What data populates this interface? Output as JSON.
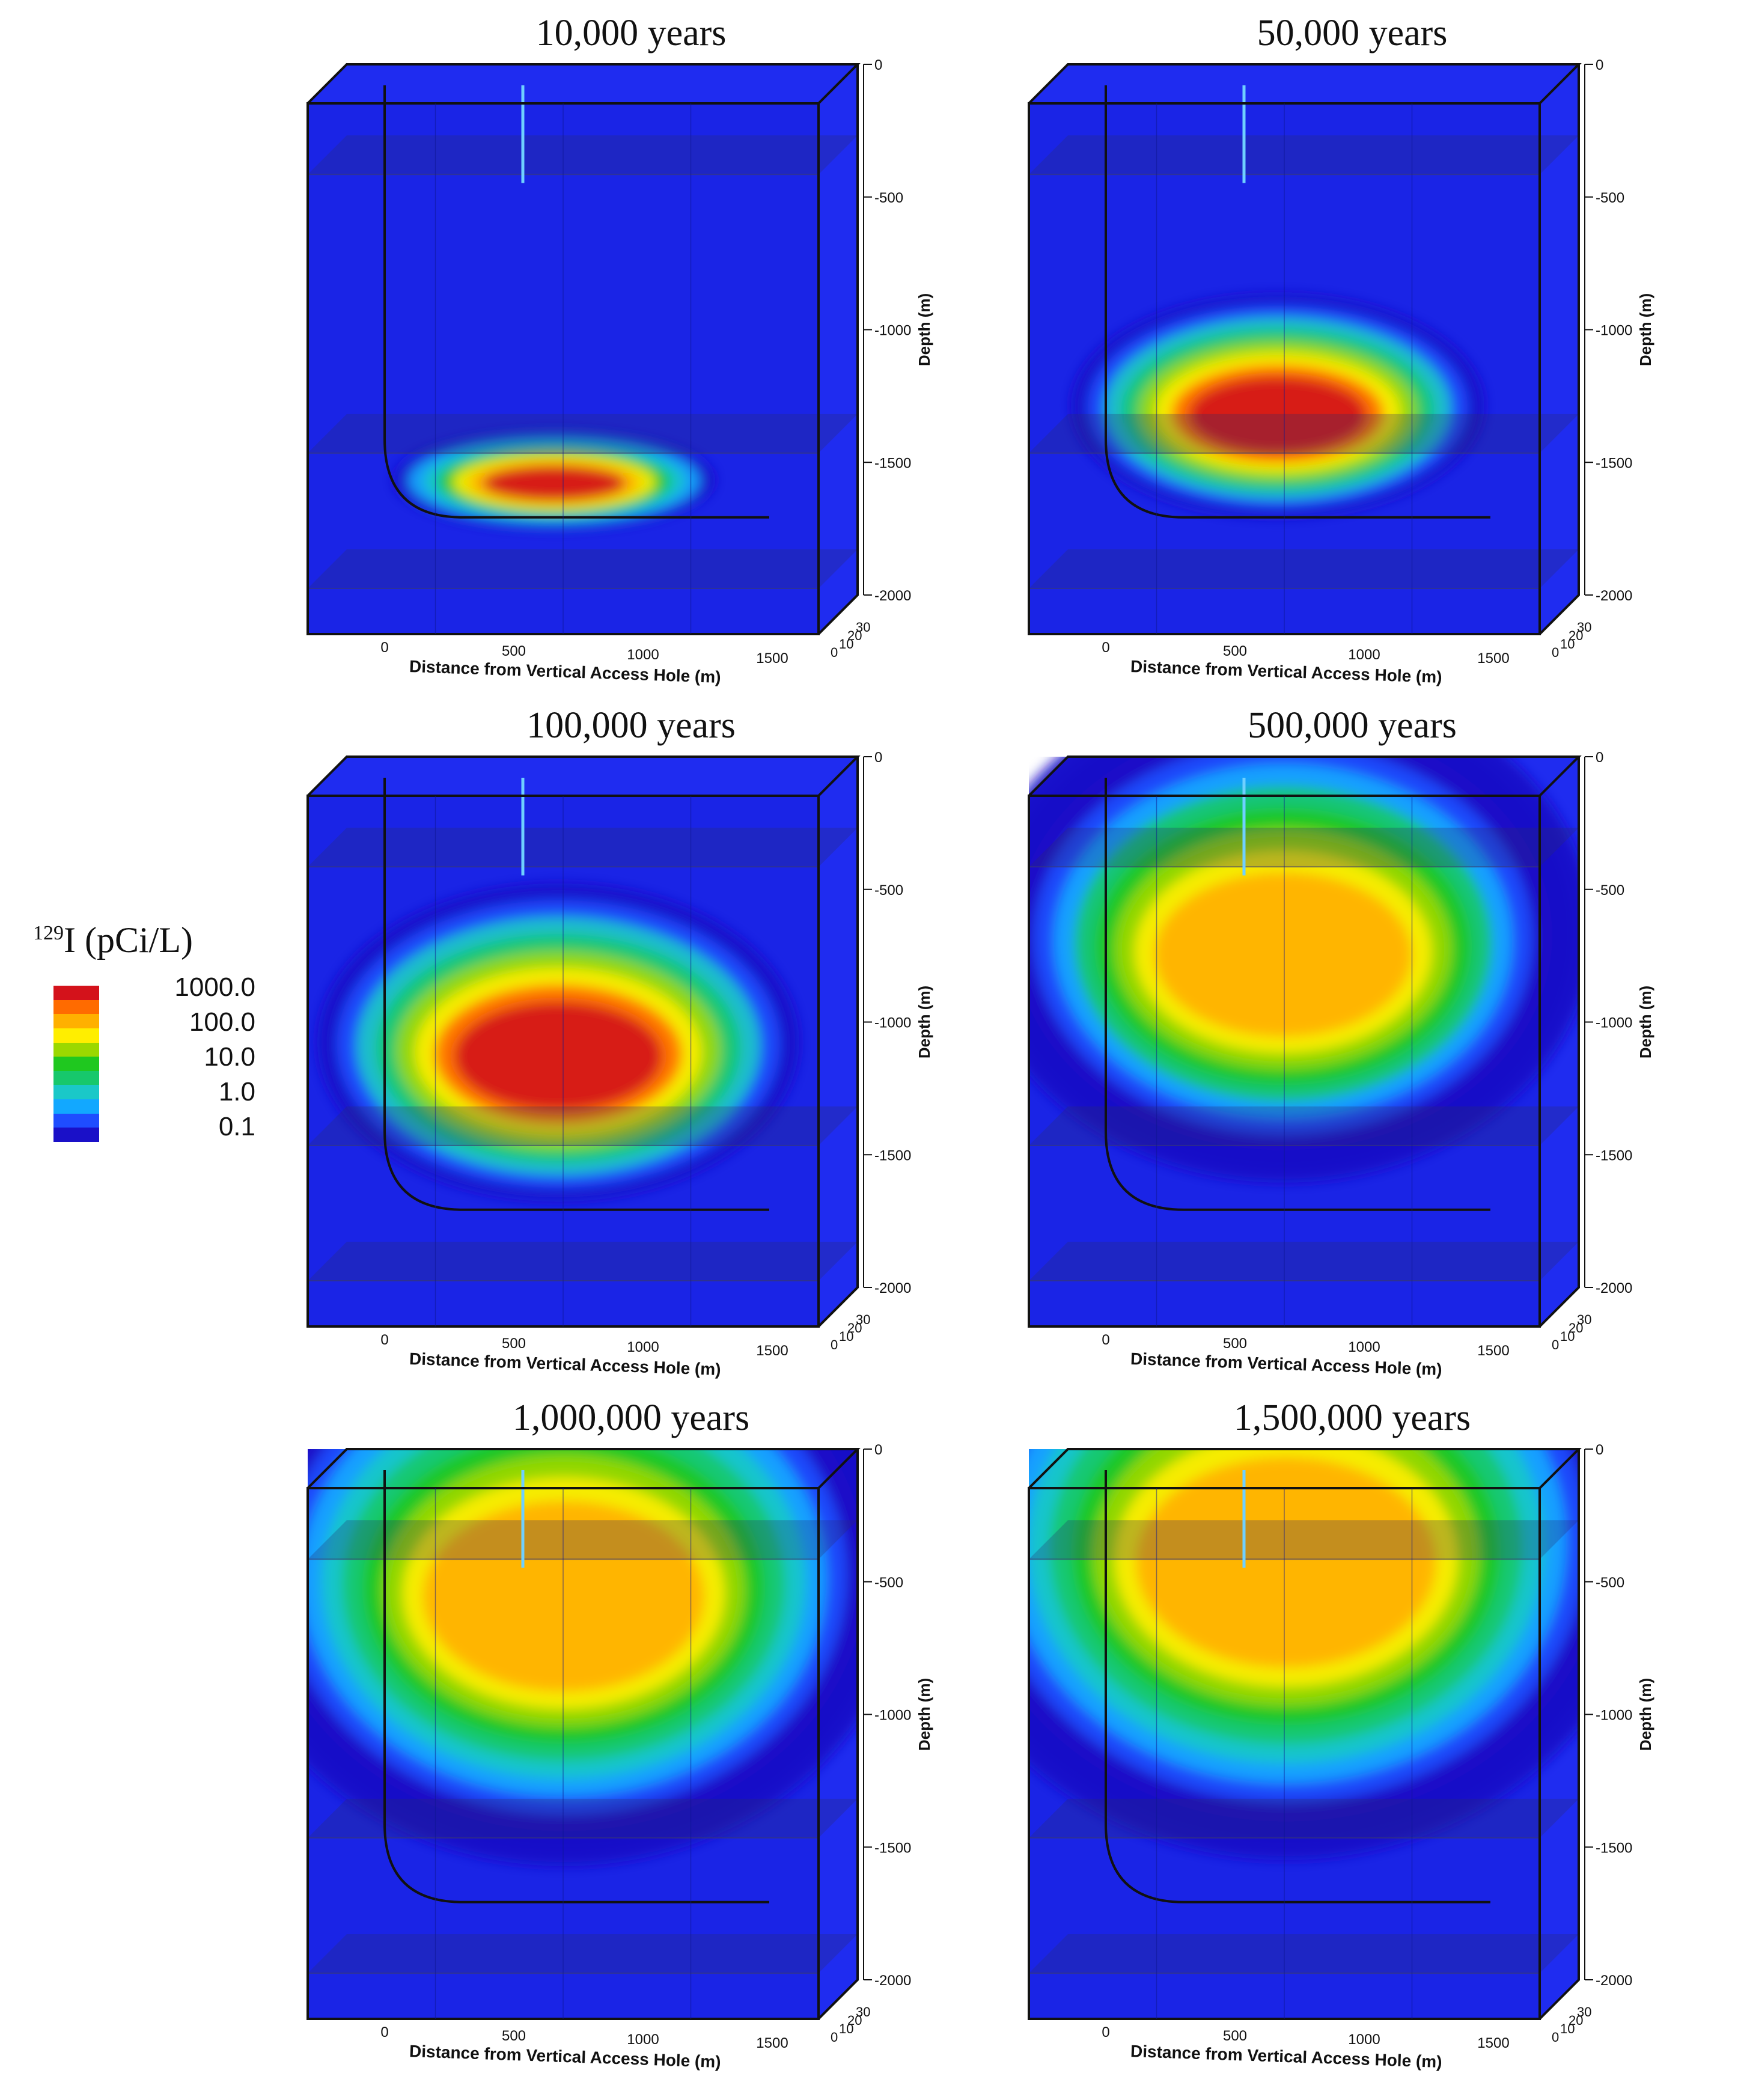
{
  "chart_data": {
    "type": "heatmap",
    "quantity": "I (pCi/L)",
    "quantity_sup": "129",
    "legend": {
      "levels": [
        "1000.0",
        "100.0",
        "10.0",
        "1.0",
        "0.1"
      ],
      "colors": [
        "#d4121b",
        "#ff6b00",
        "#ffb000",
        "#ffee00",
        "#9bd800",
        "#1fc81f",
        "#17c86b",
        "#1ac8c8",
        "#12a8ff",
        "#1f4dff",
        "#1a10c8"
      ]
    },
    "axes": {
      "xlabel": "Distance from Vertical Access Hole (m)",
      "xticks": [
        "0",
        "500",
        "1000",
        "1500"
      ],
      "ylabel": "Depth (m)",
      "yticks": [
        "0",
        "-500",
        "-1000",
        "-1500",
        "-2000"
      ],
      "zticks": [
        "0",
        "10",
        "20",
        "30"
      ]
    },
    "panels": [
      {
        "title": "10,000 years",
        "extent": 0.1
      },
      {
        "title": "50,000 years",
        "extent": 0.3
      },
      {
        "title": "100,000 years",
        "extent": 0.45
      },
      {
        "title": "500,000 years",
        "extent": 0.75
      },
      {
        "title": "1,000,000 years",
        "extent": 0.9
      },
      {
        "title": "1,500,000 years",
        "extent": 1.0
      }
    ]
  }
}
